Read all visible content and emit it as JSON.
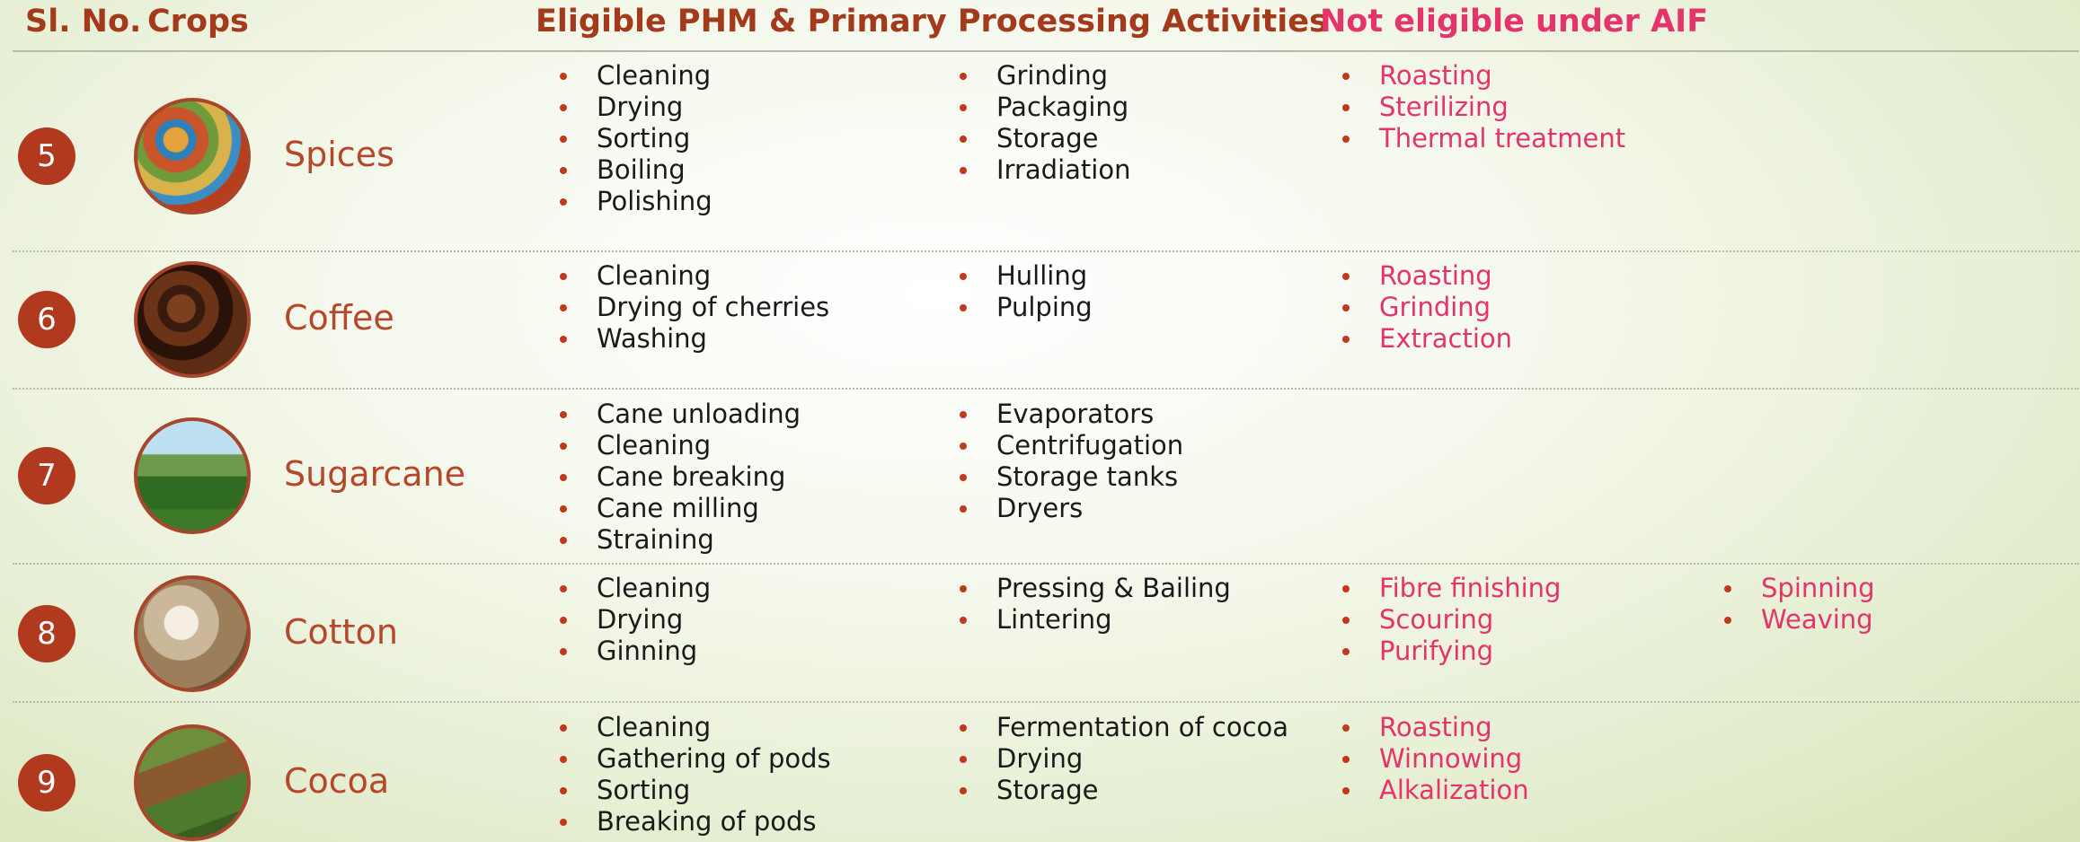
{
  "header": {
    "sl_no": "Sl. No.",
    "crops": "Crops",
    "eligible": "Eligible PHM & Primary Processing Activities",
    "not_eligible": "Not eligible under AIF"
  },
  "rows": [
    {
      "number": 5,
      "crop": "Spices",
      "eligible_1": [
        "Cleaning",
        "Drying",
        "Sorting",
        "Boiling",
        "Polishing"
      ],
      "eligible_2": [
        "Grinding",
        "Packaging",
        "Storage",
        "Irradiation"
      ],
      "not_eligible_1": [
        "Roasting",
        "Sterilizing",
        "Thermal treatment"
      ],
      "not_eligible_2": []
    },
    {
      "number": 6,
      "crop": "Coffee",
      "eligible_1": [
        "Cleaning",
        "Drying of cherries",
        "Washing"
      ],
      "eligible_2": [
        "Hulling",
        "Pulping"
      ],
      "not_eligible_1": [
        "Roasting",
        "Grinding",
        "Extraction"
      ],
      "not_eligible_2": []
    },
    {
      "number": 7,
      "crop": "Sugarcane",
      "eligible_1": [
        "Cane unloading",
        "Cleaning",
        "Cane breaking",
        "Cane milling",
        "Straining"
      ],
      "eligible_2": [
        "Evaporators",
        "Centrifugation",
        "Storage tanks",
        "Dryers"
      ],
      "not_eligible_1": [],
      "not_eligible_2": []
    },
    {
      "number": 8,
      "crop": "Cotton",
      "eligible_1": [
        "Cleaning",
        "Drying",
        "Ginning"
      ],
      "eligible_2": [
        "Pressing & Bailing",
        "Lintering"
      ],
      "not_eligible_1": [
        "Fibre finishing",
        "Scouring",
        "Purifying"
      ],
      "not_eligible_2": [
        "Spinning",
        "Weaving"
      ]
    },
    {
      "number": 9,
      "crop": "Cocoa",
      "eligible_1": [
        "Cleaning",
        "Gathering of pods",
        "Sorting",
        "Breaking of pods"
      ],
      "eligible_2": [
        "Fermentation of cocoa",
        "Drying",
        "Storage"
      ],
      "not_eligible_1": [
        "Roasting",
        "Winnowing",
        "Alkalization"
      ],
      "not_eligible_2": []
    }
  ]
}
